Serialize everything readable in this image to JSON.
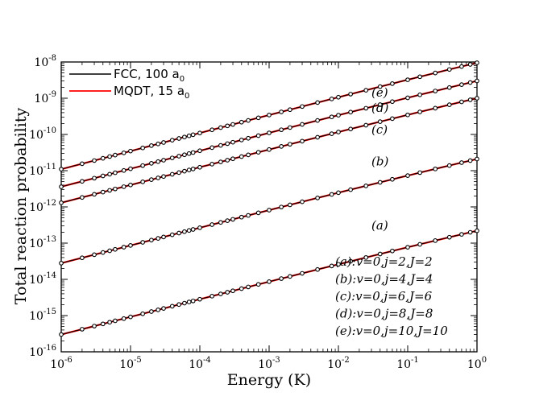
{
  "chart_data": {
    "type": "line",
    "title": "",
    "xlabel": "Energy (K)",
    "ylabel": "Total reaction probability",
    "x_scale": "log",
    "y_scale": "log",
    "xlim": [
      1e-06,
      1
    ],
    "ylim": [
      1e-16,
      1e-08
    ],
    "x_ticks": [
      {
        "base": "10",
        "exp": "-6",
        "value": 1e-06
      },
      {
        "base": "10",
        "exp": "-5",
        "value": 1e-05
      },
      {
        "base": "10",
        "exp": "-4",
        "value": 0.0001
      },
      {
        "base": "10",
        "exp": "-3",
        "value": 0.001
      },
      {
        "base": "10",
        "exp": "-2",
        "value": 0.01
      },
      {
        "base": "10",
        "exp": "-1",
        "value": 0.1
      },
      {
        "base": "10",
        "exp": "0",
        "value": 1
      }
    ],
    "y_ticks": [
      {
        "base": "10",
        "exp": "-16",
        "value": 1e-16
      },
      {
        "base": "10",
        "exp": "-15",
        "value": 1e-15
      },
      {
        "base": "10",
        "exp": "-14",
        "value": 1e-14
      },
      {
        "base": "10",
        "exp": "-13",
        "value": 1e-13
      },
      {
        "base": "10",
        "exp": "-12",
        "value": 1e-12
      },
      {
        "base": "10",
        "exp": "-11",
        "value": 1e-11
      },
      {
        "base": "10",
        "exp": "-10",
        "value": 1e-10
      },
      {
        "base": "10",
        "exp": "-9",
        "value": 1e-09
      },
      {
        "base": "10",
        "exp": "-8",
        "value": 1e-08
      }
    ],
    "legend": {
      "position": "top-left",
      "entries": [
        {
          "name": "FCC, 100 a",
          "subscript": "0",
          "color": "#000000",
          "style": "line with circle markers"
        },
        {
          "name": "MQDT, 15 a",
          "subscript": "0",
          "color": "#ff0000",
          "style": "line"
        }
      ]
    },
    "series": [
      {
        "tag": "(a)",
        "label": "(a):v=0,j=2,J=2",
        "y_at_xmin": 3e-16,
        "y_at_xmax": 2.2e-13
      },
      {
        "tag": "(b)",
        "label": "(b):v=0,j=4,J=4",
        "y_at_xmin": 2.8e-14,
        "y_at_xmax": 2.1e-11
      },
      {
        "tag": "(c)",
        "label": "(c):v=0,j=6,J=6",
        "y_at_xmin": 1.3e-12,
        "y_at_xmax": 1e-09
      },
      {
        "tag": "(d)",
        "label": "(d):v=0,j=8,J=8",
        "y_at_xmin": 3.6e-12,
        "y_at_xmax": 3e-09
      },
      {
        "tag": "(e)",
        "label": "(e):v=0,j=10,J=10",
        "y_at_xmin": 1.1e-11,
        "y_at_xmax": 9.5e-09
      }
    ],
    "tag_x": [
      0.03,
      0.03,
      0.03,
      0.03,
      0.03
    ],
    "tag_y": [
      2.4e-13,
      1.4e-11,
      1.05e-10,
      4.2e-10,
      1.1e-09
    ],
    "key_title": "",
    "curve_shape": "near power law, slope about 0.5 at low energy with slight bend near 1 K",
    "marker_x": [
      1e-06,
      2e-06,
      3e-06,
      4e-06,
      5e-06,
      6e-06,
      8e-06,
      1e-05,
      1.5e-05,
      2e-05,
      2.5e-05,
      3e-05,
      4e-05,
      5e-05,
      6e-05,
      7e-05,
      8e-05,
      0.0001,
      0.00015,
      0.0002,
      0.00025,
      0.0003,
      0.0004,
      0.0005,
      0.0007,
      0.001,
      0.0015,
      0.002,
      0.003,
      0.005,
      0.008,
      0.01,
      0.015,
      0.025,
      0.04,
      0.06,
      0.1,
      0.15,
      0.25,
      0.4,
      0.6,
      0.8,
      1
    ]
  },
  "colors": {
    "fcc": "#000000",
    "mqdt": "#ff0000",
    "axes": "#000000"
  }
}
